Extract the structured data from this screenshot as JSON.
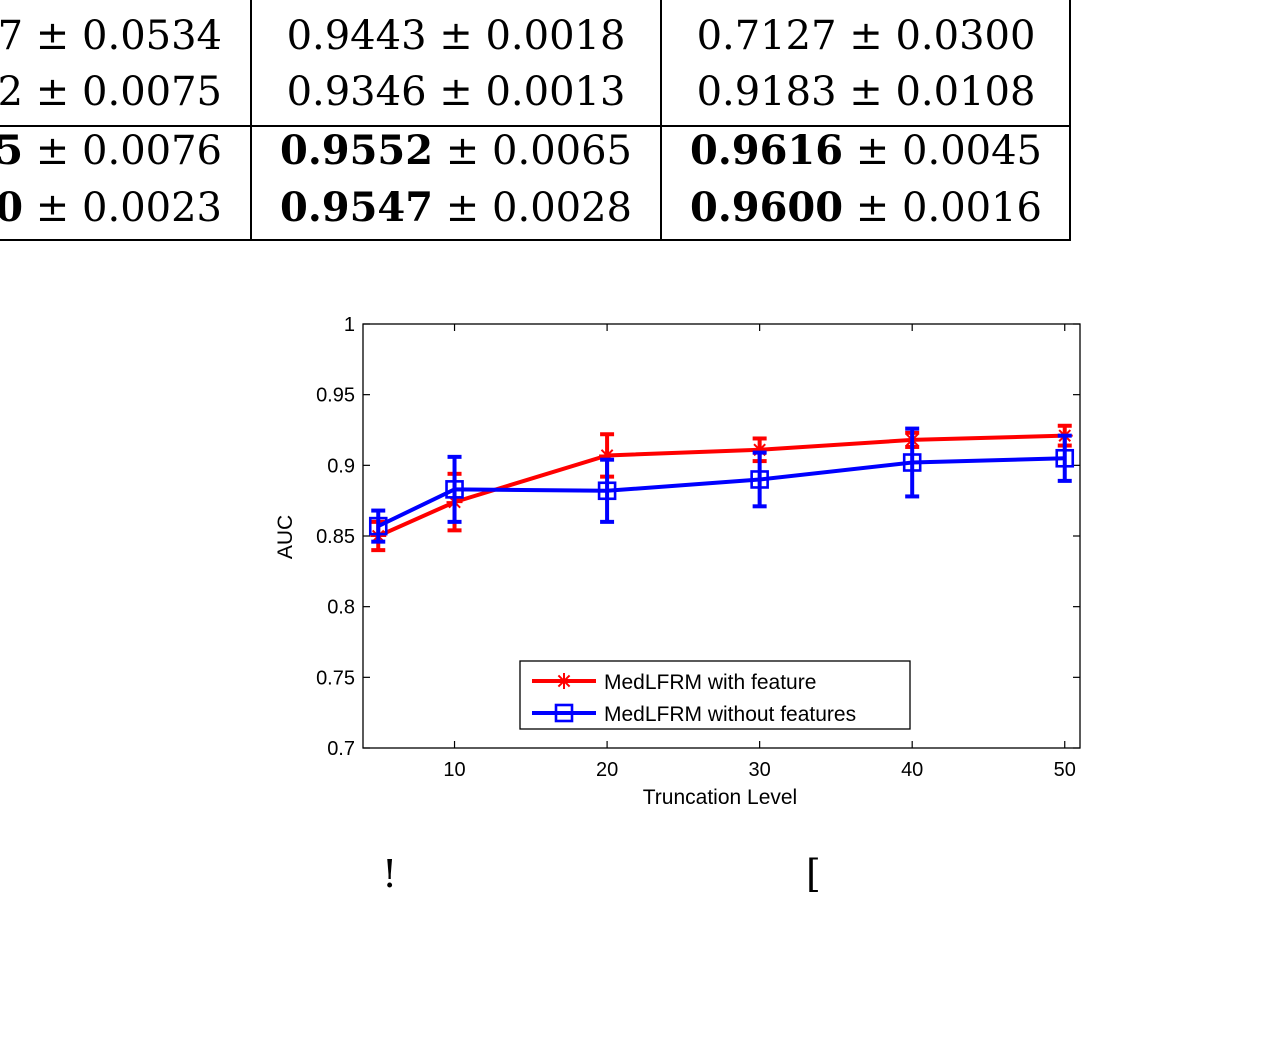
{
  "table": {
    "rows": [
      {
        "cells": [
          {
            "bold": "",
            "rest": "7 ± 0.0534"
          },
          {
            "bold": "",
            "rest": "0.9443 ± 0.0018"
          },
          {
            "bold": "",
            "rest": "0.7127 ± 0.0300"
          }
        ]
      },
      {
        "cells": [
          {
            "bold": "",
            "rest": "2 ± 0.0075"
          },
          {
            "bold": "",
            "rest": "0.9346 ± 0.0013"
          },
          {
            "bold": "",
            "rest": "0.9183 ± 0.0108"
          }
        ]
      },
      {
        "cells": [
          {
            "bold": "5",
            "rest": " ± 0.0076"
          },
          {
            "bold": "0.9552",
            "rest": " ± 0.0065"
          },
          {
            "bold": "0.9616",
            "rest": " ± 0.0045"
          }
        ]
      },
      {
        "cells": [
          {
            "bold": "0",
            "rest": " ± 0.0023"
          },
          {
            "bold": "0.9547",
            "rest": " ± 0.0028"
          },
          {
            "bold": "0.9600",
            "rest": " ± 0.0016"
          }
        ]
      }
    ]
  },
  "chart_data": {
    "type": "line",
    "title": "",
    "xlabel": "Truncation Level",
    "ylabel": "AUC",
    "xlim": [
      4,
      51
    ],
    "ylim": [
      0.7,
      1
    ],
    "xticks": [
      10,
      20,
      30,
      40,
      50
    ],
    "yticks": [
      0.7,
      0.75,
      0.8,
      0.85,
      0.9,
      0.95,
      1
    ],
    "ytick_labels": [
      "0.7",
      "0.75",
      "0.8",
      "0.85",
      "0.9",
      "0.95",
      "1"
    ],
    "legend_position": "bottom-right",
    "series": [
      {
        "name": "MedLFRM with feature",
        "color": "#ff0000",
        "marker": "asterisk",
        "x": [
          5,
          10,
          20,
          30,
          40,
          50
        ],
        "y": [
          0.85,
          0.874,
          0.907,
          0.911,
          0.918,
          0.921
        ],
        "err": [
          0.01,
          0.02,
          0.015,
          0.008,
          0.005,
          0.007
        ]
      },
      {
        "name": "MedLFRM without features",
        "color": "#0000ff",
        "marker": "square",
        "x": [
          5,
          10,
          20,
          30,
          40,
          50
        ],
        "y": [
          0.857,
          0.883,
          0.882,
          0.89,
          0.902,
          0.905
        ],
        "err": [
          0.011,
          0.023,
          0.022,
          0.019,
          0.024,
          0.016
        ]
      }
    ]
  },
  "fragments": {
    "left": "!",
    "right": "["
  }
}
